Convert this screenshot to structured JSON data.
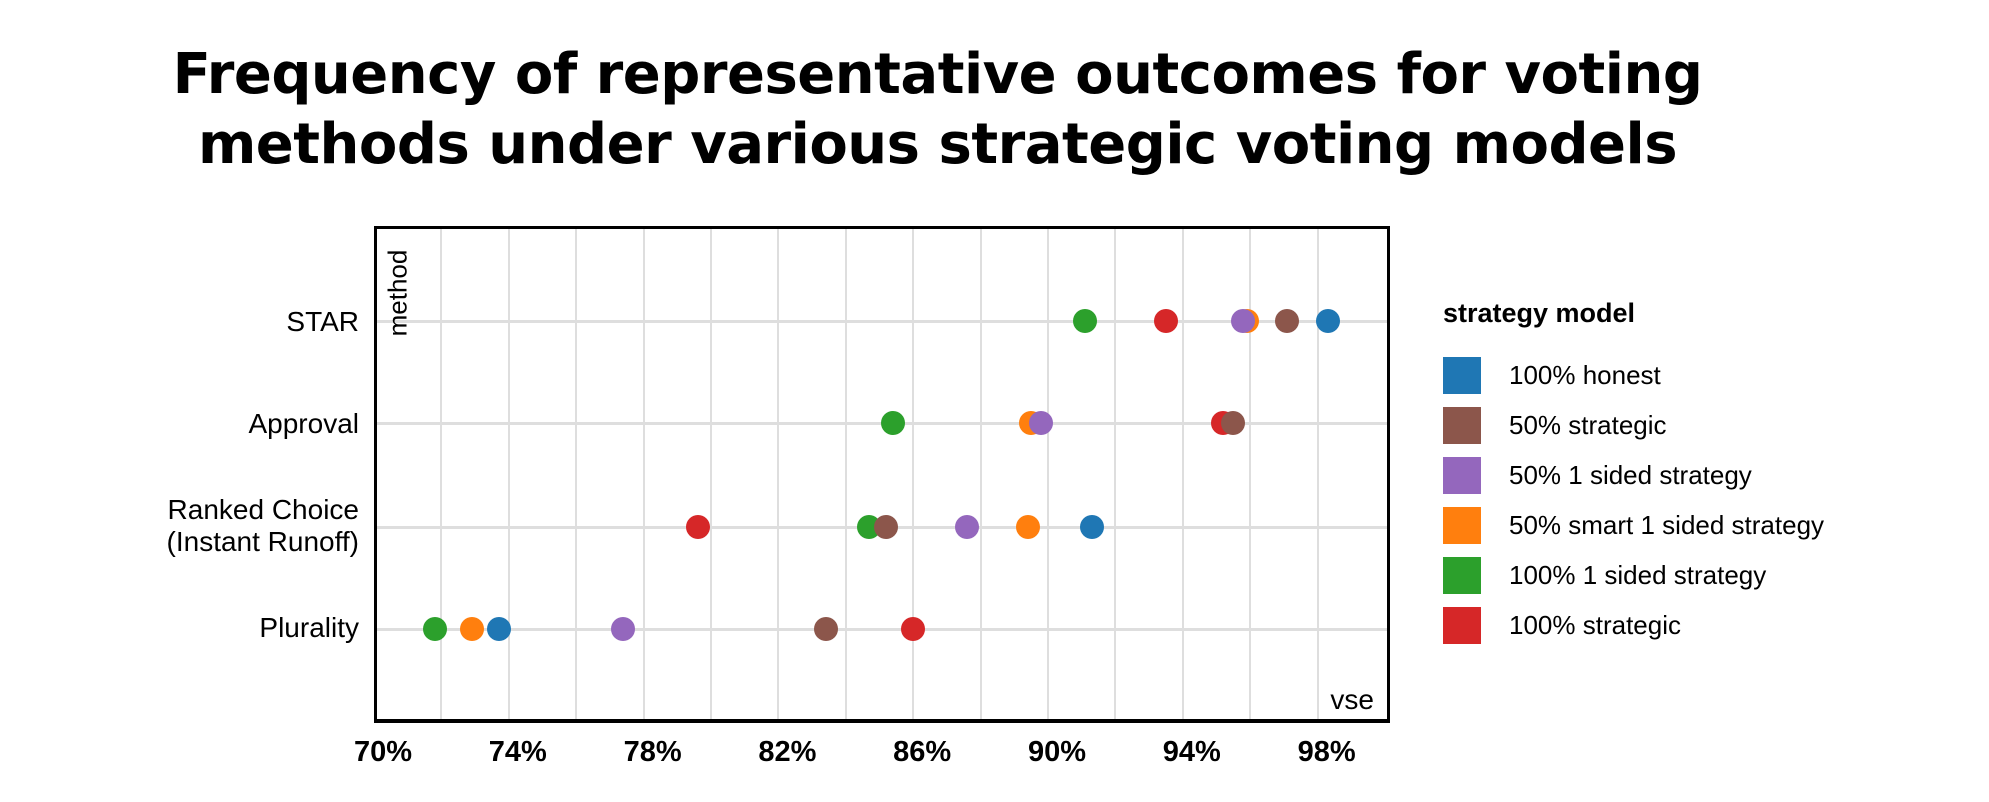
{
  "title": {
    "line1": "Frequency of representative outcomes for voting",
    "line2": "methods under various strategic voting models"
  },
  "axes": {
    "y_title": "method",
    "x_title": "vse",
    "x_ticks": [
      "70%",
      "74%",
      "78%",
      "82%",
      "86%",
      "90%",
      "94%",
      "98%"
    ],
    "x_tick_values": [
      70,
      74,
      78,
      82,
      86,
      90,
      94,
      98
    ]
  },
  "legend": {
    "title": "strategy model",
    "items": [
      {
        "label": "100% honest",
        "color": "#1f77b4"
      },
      {
        "label": "50% strategic",
        "color": "#8c564b"
      },
      {
        "label": "50% 1 sided strategy",
        "color": "#9467bd"
      },
      {
        "label": "50% smart 1 sided strategy",
        "color": "#ff7f0e"
      },
      {
        "label": "100% 1 sided strategy",
        "color": "#2ca02c"
      },
      {
        "label": "100% strategic",
        "color": "#d62728"
      }
    ]
  },
  "rows": [
    {
      "label": "STAR"
    },
    {
      "label": "Approval"
    },
    {
      "label_line1": "Ranked Choice",
      "label_line2": "(Instant Runoff)"
    },
    {
      "label": "Plurality"
    }
  ],
  "chart_data": {
    "type": "scatter",
    "title": "Frequency of representative outcomes for voting methods under various strategic voting models",
    "xlabel": "vse",
    "ylabel": "method",
    "xlim": [
      70,
      100
    ],
    "x_ticks": [
      "70%",
      "74%",
      "78%",
      "82%",
      "86%",
      "90%",
      "94%",
      "98%"
    ],
    "grid": true,
    "legend_position": "right",
    "legend_title": "strategy model",
    "categories": [
      "STAR",
      "Approval",
      "Ranked Choice (Instant Runoff)",
      "Plurality"
    ],
    "series": [
      {
        "name": "100% honest",
        "color": "#1f77b4",
        "values": [
          98.3,
          null,
          91.3,
          73.7
        ]
      },
      {
        "name": "50% strategic",
        "color": "#8c564b",
        "values": [
          97.1,
          95.5,
          85.2,
          83.4
        ]
      },
      {
        "name": "50% 1 sided strategy",
        "color": "#9467bd",
        "values": [
          95.8,
          89.8,
          87.6,
          77.4
        ]
      },
      {
        "name": "50% smart 1 sided strategy",
        "color": "#ff7f0e",
        "values": [
          95.9,
          89.5,
          89.4,
          72.9
        ]
      },
      {
        "name": "100% 1 sided strategy",
        "color": "#2ca02c",
        "values": [
          91.1,
          85.4,
          84.7,
          71.8
        ]
      },
      {
        "name": "100% strategic",
        "color": "#d62728",
        "values": [
          93.5,
          95.2,
          79.6,
          86.0
        ]
      }
    ]
  }
}
